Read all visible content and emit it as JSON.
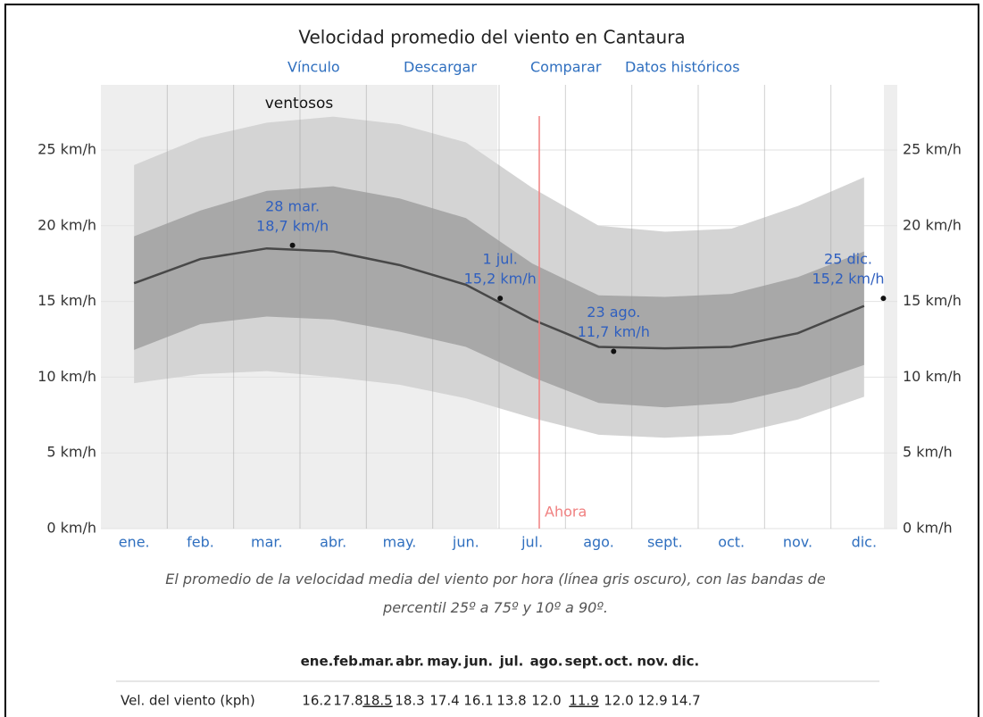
{
  "chart_data": {
    "type": "band-line",
    "title": "Velocidad promedio del viento en Cantaura",
    "links": [
      "Vínculo",
      "Descargar",
      "Comparar",
      "Datos históricos"
    ],
    "season_label": "ventosos",
    "now_label": "Ahora",
    "categories": [
      "ene.",
      "feb.",
      "mar.",
      "abr.",
      "may.",
      "jun.",
      "jul.",
      "ago.",
      "sept.",
      "oct.",
      "nov.",
      "dic."
    ],
    "line": {
      "color": "#484848",
      "values": [
        16.2,
        17.8,
        18.5,
        18.3,
        17.4,
        16.1,
        13.8,
        12.0,
        11.9,
        12.0,
        12.9,
        14.7
      ],
      "value_labels": [
        "16.2",
        "17.8",
        "18.5",
        "18.3",
        "17.4",
        "16.1",
        "13.8",
        "12.0",
        "11.9",
        "12.0",
        "12.9",
        "14.7"
      ]
    },
    "band_outer": {
      "color": "#d4d4d4",
      "low": [
        9.6,
        10.2,
        10.4,
        10.0,
        9.5,
        8.6,
        7.3,
        6.2,
        6.0,
        6.2,
        7.2,
        8.7
      ],
      "high": [
        24.0,
        25.8,
        26.8,
        27.2,
        26.7,
        25.5,
        22.5,
        20.0,
        19.6,
        19.8,
        21.3,
        23.2
      ]
    },
    "band_inner": {
      "color": "#a8a8a8",
      "low": [
        11.8,
        13.5,
        14.0,
        13.8,
        13.0,
        12.0,
        10.0,
        8.3,
        8.0,
        8.3,
        9.3,
        10.8
      ],
      "high": [
        19.3,
        21.0,
        22.3,
        22.6,
        21.8,
        20.5,
        17.5,
        15.4,
        15.3,
        15.5,
        16.6,
        18.3
      ]
    },
    "annotations": [
      {
        "date": "28 mar.",
        "value": 18.7,
        "value_label": "18,7 km/h"
      },
      {
        "date": "1 jul.",
        "value": 15.2,
        "value_label": "15,2 km/h"
      },
      {
        "date": "23 ago.",
        "value": 11.7,
        "value_label": "11,7 km/h"
      },
      {
        "date": "25 dic.",
        "value": 15.2,
        "value_label": "15,2 km/h"
      }
    ],
    "ylim": [
      0,
      29.3
    ],
    "yticks": [
      {
        "value": 0,
        "label": "0 km/h"
      },
      {
        "value": 5,
        "label": "5 km/h"
      },
      {
        "value": 10,
        "label": "10 km/h"
      },
      {
        "value": 15,
        "label": "15 km/h"
      },
      {
        "value": 20,
        "label": "20 km/h"
      },
      {
        "value": 25,
        "label": "25 km/h"
      }
    ],
    "caption": "El promedio de la velocidad media del viento por hora (línea gris oscuro), con las bandas de percentil 25º a 75º y 10º a 90º.",
    "table": {
      "row_label": "Vel. del viento (kph)"
    }
  }
}
